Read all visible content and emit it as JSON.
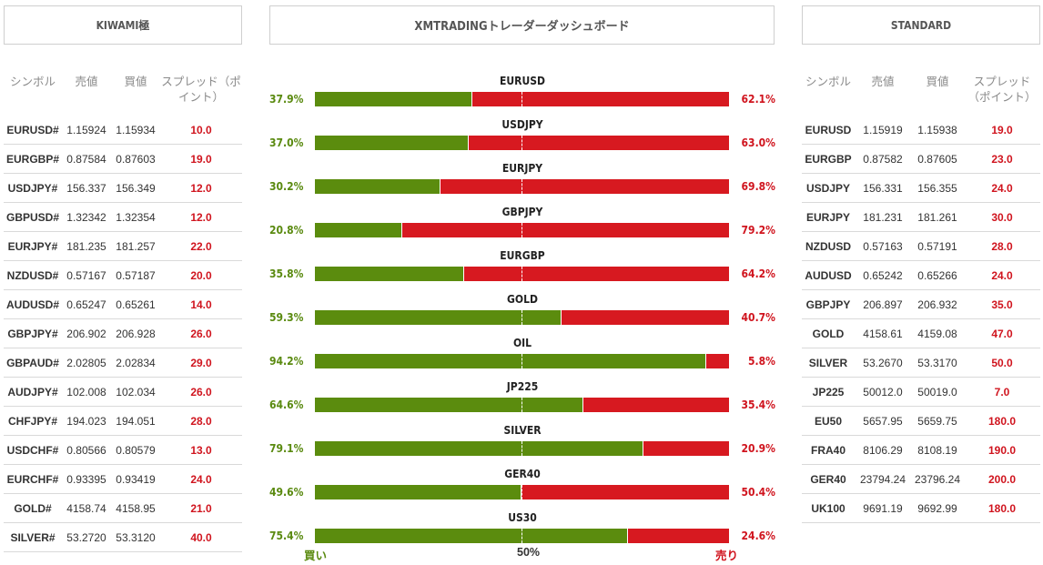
{
  "headers": {
    "left": "KIWAMI極",
    "middle": "XMTRADINGトレーダーダッシュボード",
    "right": "STANDARD"
  },
  "columns": {
    "symbol": "シンボル",
    "bid": "売値",
    "ask": "買値",
    "spread_left": "スプレッド（ポイント）",
    "spread_right": "スプレッド（ポイント）"
  },
  "kiwami": [
    {
      "symbol": "EURUSD#",
      "bid": "1.15924",
      "ask": "1.15934",
      "spread": "10.0"
    },
    {
      "symbol": "EURGBP#",
      "bid": "0.87584",
      "ask": "0.87603",
      "spread": "19.0"
    },
    {
      "symbol": "USDJPY#",
      "bid": "156.337",
      "ask": "156.349",
      "spread": "12.0"
    },
    {
      "symbol": "GBPUSD#",
      "bid": "1.32342",
      "ask": "1.32354",
      "spread": "12.0"
    },
    {
      "symbol": "EURJPY#",
      "bid": "181.235",
      "ask": "181.257",
      "spread": "22.0"
    },
    {
      "symbol": "NZDUSD#",
      "bid": "0.57167",
      "ask": "0.57187",
      "spread": "20.0"
    },
    {
      "symbol": "AUDUSD#",
      "bid": "0.65247",
      "ask": "0.65261",
      "spread": "14.0"
    },
    {
      "symbol": "GBPJPY#",
      "bid": "206.902",
      "ask": "206.928",
      "spread": "26.0"
    },
    {
      "symbol": "GBPAUD#",
      "bid": "2.02805",
      "ask": "2.02834",
      "spread": "29.0"
    },
    {
      "symbol": "AUDJPY#",
      "bid": "102.008",
      "ask": "102.034",
      "spread": "26.0"
    },
    {
      "symbol": "CHFJPY#",
      "bid": "194.023",
      "ask": "194.051",
      "spread": "28.0"
    },
    {
      "symbol": "USDCHF#",
      "bid": "0.80566",
      "ask": "0.80579",
      "spread": "13.0"
    },
    {
      "symbol": "EURCHF#",
      "bid": "0.93395",
      "ask": "0.93419",
      "spread": "24.0"
    },
    {
      "symbol": "GOLD#",
      "bid": "4158.74",
      "ask": "4158.95",
      "spread": "21.0"
    },
    {
      "symbol": "SILVER#",
      "bid": "53.2720",
      "ask": "53.3120",
      "spread": "40.0"
    }
  ],
  "standard": [
    {
      "symbol": "EURUSD",
      "bid": "1.15919",
      "ask": "1.15938",
      "spread": "19.0"
    },
    {
      "symbol": "EURGBP",
      "bid": "0.87582",
      "ask": "0.87605",
      "spread": "23.0"
    },
    {
      "symbol": "USDJPY",
      "bid": "156.331",
      "ask": "156.355",
      "spread": "24.0"
    },
    {
      "symbol": "EURJPY",
      "bid": "181.231",
      "ask": "181.261",
      "spread": "30.0"
    },
    {
      "symbol": "NZDUSD",
      "bid": "0.57163",
      "ask": "0.57191",
      "spread": "28.0"
    },
    {
      "symbol": "AUDUSD",
      "bid": "0.65242",
      "ask": "0.65266",
      "spread": "24.0"
    },
    {
      "symbol": "GBPJPY",
      "bid": "206.897",
      "ask": "206.932",
      "spread": "35.0"
    },
    {
      "symbol": "GOLD",
      "bid": "4158.61",
      "ask": "4159.08",
      "spread": "47.0"
    },
    {
      "symbol": "SILVER",
      "bid": "53.2670",
      "ask": "53.3170",
      "spread": "50.0"
    },
    {
      "symbol": "JP225",
      "bid": "50012.0",
      "ask": "50019.0",
      "spread": "7.0"
    },
    {
      "symbol": "EU50",
      "bid": "5657.95",
      "ask": "5659.75",
      "spread": "180.0"
    },
    {
      "symbol": "FRA40",
      "bid": "8106.29",
      "ask": "8108.19",
      "spread": "190.0"
    },
    {
      "symbol": "GER40",
      "bid": "23794.24",
      "ask": "23796.24",
      "spread": "200.0"
    },
    {
      "symbol": "UK100",
      "bid": "9691.19",
      "ask": "9692.99",
      "spread": "180.0"
    }
  ],
  "sentiment": [
    {
      "symbol": "EURUSD",
      "buy": "37.9%",
      "sell": "62.1%",
      "buy_value": 37.9
    },
    {
      "symbol": "USDJPY",
      "buy": "37.0%",
      "sell": "63.0%",
      "buy_value": 37.0
    },
    {
      "symbol": "EURJPY",
      "buy": "30.2%",
      "sell": "69.8%",
      "buy_value": 30.2
    },
    {
      "symbol": "GBPJPY",
      "buy": "20.8%",
      "sell": "79.2%",
      "buy_value": 20.8
    },
    {
      "symbol": "EURGBP",
      "buy": "35.8%",
      "sell": "64.2%",
      "buy_value": 35.8
    },
    {
      "symbol": "GOLD",
      "buy": "59.3%",
      "sell": "40.7%",
      "buy_value": 59.3
    },
    {
      "symbol": "OIL",
      "buy": "94.2%",
      "sell": "5.8%",
      "buy_value": 94.2
    },
    {
      "symbol": "JP225",
      "buy": "64.6%",
      "sell": "35.4%",
      "buy_value": 64.6
    },
    {
      "symbol": "SILVER",
      "buy": "79.1%",
      "sell": "20.9%",
      "buy_value": 79.1
    },
    {
      "symbol": "GER40",
      "buy": "49.6%",
      "sell": "50.4%",
      "buy_value": 49.6
    },
    {
      "symbol": "US30",
      "buy": "75.4%",
      "sell": "24.6%",
      "buy_value": 75.4
    }
  ],
  "legend": {
    "buy": "買い",
    "half": "50%",
    "sell": "売り"
  },
  "colors": {
    "buy": "#5b8c0e",
    "sell": "#d71920"
  }
}
